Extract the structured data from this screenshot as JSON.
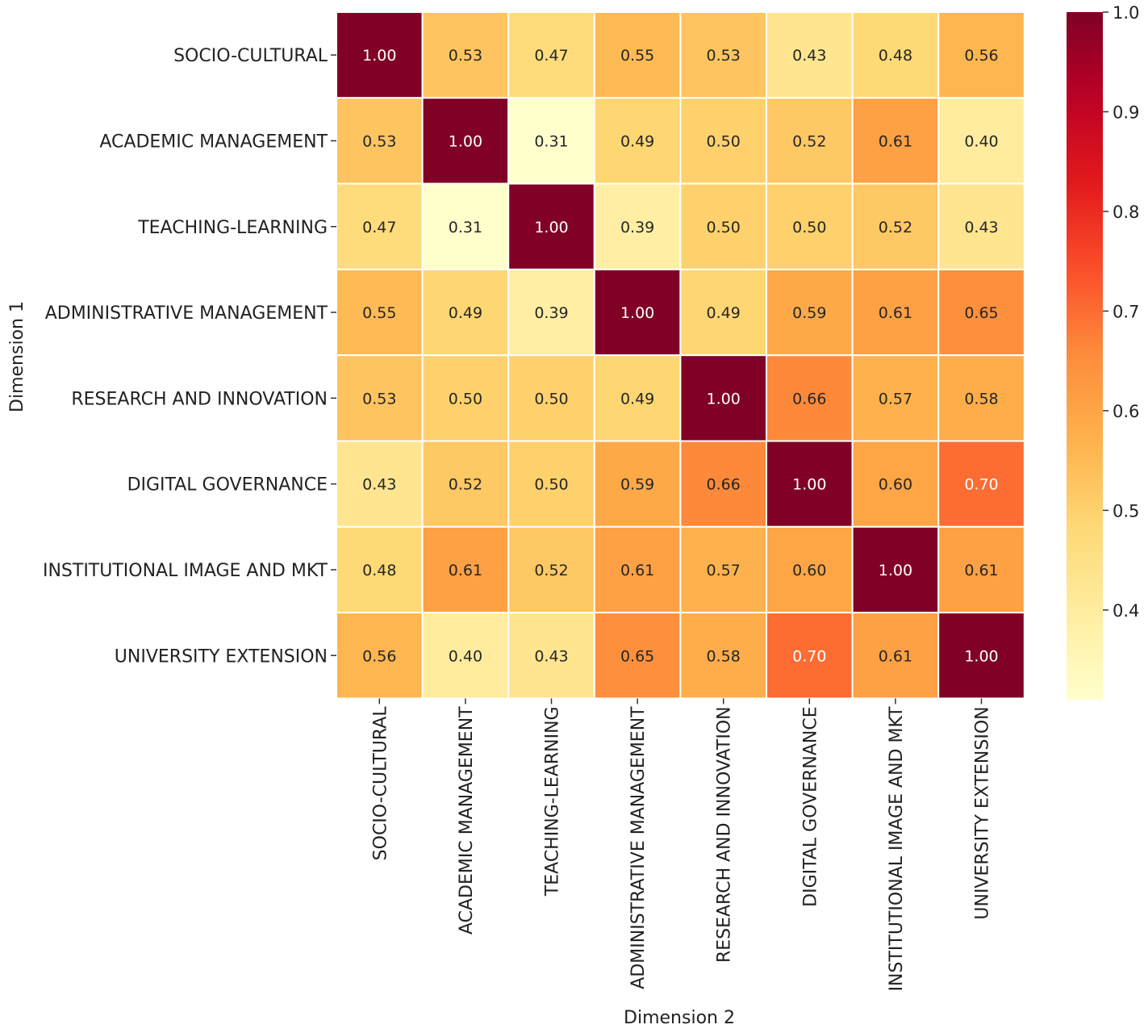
{
  "chart_data": {
    "type": "heatmap",
    "title": "",
    "xlabel": "Dimension 2",
    "ylabel": "Dimension 1",
    "rows": [
      "SOCIO-CULTURAL",
      "ACADEMIC MANAGEMENT",
      "TEACHING-LEARNING",
      "ADMINISTRATIVE MANAGEMENT",
      "RESEARCH AND INNOVATION",
      "DIGITAL GOVERNANCE",
      "INSTITUTIONAL IMAGE AND MKT",
      "UNIVERSITY EXTENSION"
    ],
    "columns": [
      "SOCIO-CULTURAL",
      "ACADEMIC MANAGEMENT",
      "TEACHING-LEARNING",
      "ADMINISTRATIVE MANAGEMENT",
      "RESEARCH AND INNOVATION",
      "DIGITAL GOVERNANCE",
      "INSTITUTIONAL IMAGE AND MKT",
      "UNIVERSITY EXTENSION"
    ],
    "values": [
      [
        1.0,
        0.53,
        0.47,
        0.55,
        0.53,
        0.43,
        0.48,
        0.56
      ],
      [
        0.53,
        1.0,
        0.31,
        0.49,
        0.5,
        0.52,
        0.61,
        0.4
      ],
      [
        0.47,
        0.31,
        1.0,
        0.39,
        0.5,
        0.5,
        0.52,
        0.43
      ],
      [
        0.55,
        0.49,
        0.39,
        1.0,
        0.49,
        0.59,
        0.61,
        0.65
      ],
      [
        0.53,
        0.5,
        0.5,
        0.49,
        1.0,
        0.66,
        0.57,
        0.58
      ],
      [
        0.43,
        0.52,
        0.5,
        0.59,
        0.66,
        1.0,
        0.6,
        0.7
      ],
      [
        0.48,
        0.61,
        0.52,
        0.61,
        0.57,
        0.6,
        1.0,
        0.61
      ],
      [
        0.56,
        0.4,
        0.43,
        0.65,
        0.58,
        0.7,
        0.61,
        1.0
      ]
    ],
    "value_labels": [
      [
        "1.00",
        "0.53",
        "0.47",
        "0.55",
        "0.53",
        "0.43",
        "0.48",
        "0.56"
      ],
      [
        "0.53",
        "1.00",
        "0.31",
        "0.49",
        "0.50",
        "0.52",
        "0.61",
        "0.40"
      ],
      [
        "0.47",
        "0.31",
        "1.00",
        "0.39",
        "0.50",
        "0.50",
        "0.52",
        "0.43"
      ],
      [
        "0.55",
        "0.49",
        "0.39",
        "1.00",
        "0.49",
        "0.59",
        "0.61",
        "0.65"
      ],
      [
        "0.53",
        "0.50",
        "0.50",
        "0.49",
        "1.00",
        "0.66",
        "0.57",
        "0.58"
      ],
      [
        "0.43",
        "0.52",
        "0.50",
        "0.59",
        "0.66",
        "1.00",
        "0.60",
        "0.70"
      ],
      [
        "0.48",
        "0.61",
        "0.52",
        "0.61",
        "0.57",
        "0.60",
        "1.00",
        "0.61"
      ],
      [
        "0.56",
        "0.40",
        "0.43",
        "0.65",
        "0.58",
        "0.70",
        "0.61",
        "1.00"
      ]
    ],
    "colormap": "YlOrRd",
    "colorbar": {
      "range": [
        0.31,
        1.0
      ],
      "ticks": [
        0.4,
        0.5,
        0.6,
        0.7,
        0.8,
        0.9,
        1.0
      ],
      "tick_labels": [
        "0.4",
        "0.5",
        "0.6",
        "0.7",
        "0.8",
        "0.9",
        "1.0"
      ]
    },
    "grid": true,
    "legend": "none"
  }
}
